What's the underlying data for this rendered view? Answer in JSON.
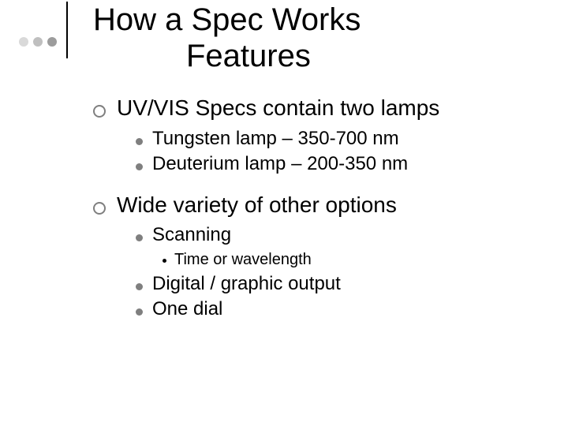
{
  "decor": {
    "dot_colors": [
      "#d9d9d9",
      "#bfbfbf",
      "#9c9c9c"
    ],
    "line_color": "#000000"
  },
  "title": {
    "line1": "How a Spec Works",
    "line2": "Features",
    "fontsize": 40
  },
  "body": {
    "items": [
      {
        "text": "UV/VIS Specs contain two lamps",
        "children": [
          {
            "text": "Tungsten lamp – 350-700 nm"
          },
          {
            "text": "Deuterium lamp – 200-350 nm"
          }
        ]
      },
      {
        "text": "Wide variety of other options",
        "children": [
          {
            "text": "Scanning",
            "children": [
              {
                "text": "Time or wavelength"
              }
            ]
          },
          {
            "text": "Digital / graphic output"
          },
          {
            "text": "One dial"
          }
        ]
      }
    ]
  },
  "colors": {
    "l1_bullet_border": "#7f7f7f",
    "l2_bullet_fill": "#7f7f7f",
    "l3_bullet_fill": "#000000",
    "text": "#000000",
    "background": "#ffffff"
  }
}
